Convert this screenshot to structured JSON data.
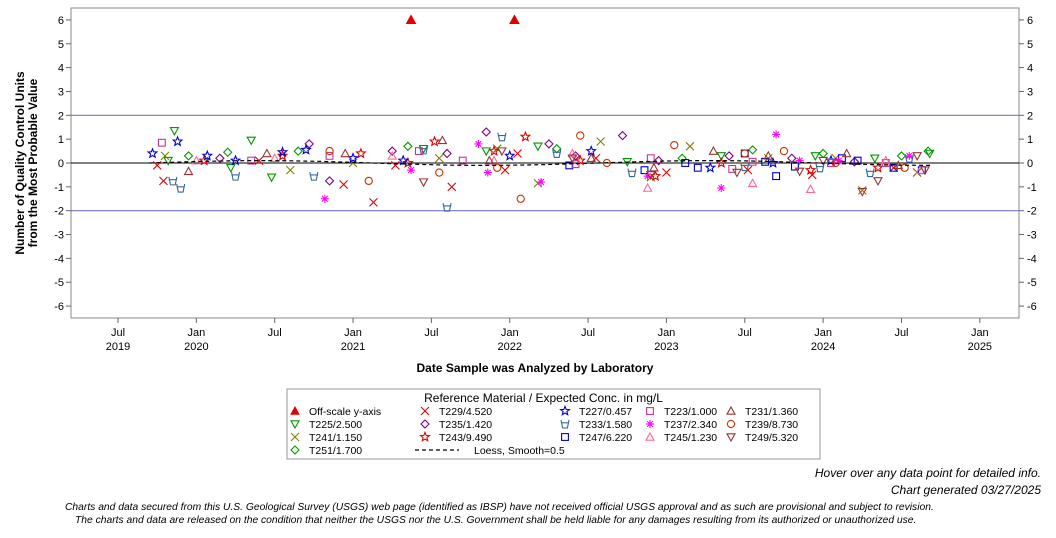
{
  "chart_data": {
    "type": "scatter",
    "y_title_lines": [
      "Number of Quality Control Units",
      "from the Most Probable Value"
    ],
    "xlabel": "Date Sample was Analyzed by Laboratory",
    "ylim": [
      -6.5,
      6.5
    ],
    "y_ticks": [
      6,
      5,
      4,
      3,
      2,
      1,
      0,
      -1,
      -2,
      -3,
      -4,
      -5,
      -6
    ],
    "y_tick_labels": [
      "6",
      "5",
      "4",
      "3",
      "2",
      "1",
      "0",
      "-1",
      "-2",
      "-3",
      "-4",
      "-5",
      "-6"
    ],
    "x_range": [
      2019.2,
      2025.25
    ],
    "x_ticks": [
      {
        "x": 2019.5,
        "line1": "Jul",
        "line2": "2019"
      },
      {
        "x": 2020.0,
        "line1": "Jan",
        "line2": "2020"
      },
      {
        "x": 2020.5,
        "line1": "Jul",
        "line2": ""
      },
      {
        "x": 2021.0,
        "line1": "Jan",
        "line2": "2021"
      },
      {
        "x": 2021.5,
        "line1": "Jul",
        "line2": ""
      },
      {
        "x": 2022.0,
        "line1": "Jan",
        "line2": "2022"
      },
      {
        "x": 2022.5,
        "line1": "Jul",
        "line2": ""
      },
      {
        "x": 2023.0,
        "line1": "Jan",
        "line2": "2023"
      },
      {
        "x": 2023.5,
        "line1": "Jul",
        "line2": ""
      },
      {
        "x": 2024.0,
        "line1": "Jan",
        "line2": "2024"
      },
      {
        "x": 2024.5,
        "line1": "Jul",
        "line2": ""
      },
      {
        "x": 2025.0,
        "line1": "Jan",
        "line2": "2025"
      }
    ],
    "reference_lines": [
      2,
      -2
    ],
    "zero_line": 0,
    "offscale_points": [
      {
        "x": 2021.37,
        "y": 6
      },
      {
        "x": 2022.03,
        "y": 6
      }
    ],
    "legend_title": "Reference Material / Expected Conc. in mg/L",
    "series": [
      {
        "name": "Off-scale y-axis",
        "symbol": "tri-up-filled",
        "color": "#e00000",
        "points": []
      },
      {
        "name": "T229/4.520",
        "symbol": "x",
        "color": "#e00000",
        "points": [
          [
            2019.75,
            -0.1
          ],
          [
            2019.79,
            -0.75
          ],
          [
            2020.4,
            0.1
          ],
          [
            2020.94,
            -0.9
          ],
          [
            2021.13,
            -1.65
          ],
          [
            2021.27,
            -0.1
          ],
          [
            2021.63,
            -1.0
          ],
          [
            2021.97,
            -0.3
          ],
          [
            2022.05,
            0.4
          ],
          [
            2022.55,
            0.2
          ],
          [
            2023.0,
            -0.4
          ],
          [
            2023.52,
            -0.3
          ],
          [
            2023.93,
            -0.5
          ],
          [
            2024.45,
            -0.2
          ],
          [
            2024.6,
            -0.4
          ]
        ]
      },
      {
        "name": "T225/2.500",
        "symbol": "tri-down",
        "color": "#009900",
        "points": [
          [
            2019.82,
            0.1
          ],
          [
            2019.86,
            1.35
          ],
          [
            2020.22,
            -0.2
          ],
          [
            2020.35,
            0.95
          ],
          [
            2020.48,
            -0.6
          ],
          [
            2021.45,
            0.6
          ],
          [
            2021.85,
            0.5
          ],
          [
            2022.18,
            0.7
          ],
          [
            2022.75,
            0.05
          ],
          [
            2023.35,
            0.3
          ],
          [
            2023.95,
            0.3
          ],
          [
            2024.33,
            0.2
          ],
          [
            2024.68,
            0.4
          ]
        ]
      },
      {
        "name": "T241/1.150",
        "symbol": "x",
        "color": "#808000",
        "points": [
          [
            2019.8,
            0.3
          ],
          [
            2020.6,
            -0.3
          ],
          [
            2021.0,
            0.0
          ],
          [
            2021.55,
            0.2
          ],
          [
            2021.92,
            0.6
          ],
          [
            2022.18,
            -0.85
          ],
          [
            2022.58,
            0.9
          ],
          [
            2022.9,
            -0.6
          ],
          [
            2023.15,
            0.7
          ],
          [
            2023.65,
            0.2
          ],
          [
            2024.08,
            0.2
          ],
          [
            2024.25,
            -1.15
          ],
          [
            2024.6,
            -0.4
          ]
        ]
      },
      {
        "name": "T251/1.700",
        "symbol": "diamond",
        "color": "#009900",
        "points": [
          [
            2019.95,
            0.3
          ],
          [
            2020.2,
            0.45
          ],
          [
            2020.65,
            0.5
          ],
          [
            2021.35,
            0.7
          ],
          [
            2022.3,
            0.6
          ],
          [
            2023.1,
            0.2
          ],
          [
            2023.55,
            0.55
          ],
          [
            2024.0,
            0.4
          ],
          [
            2024.5,
            0.3
          ],
          [
            2024.67,
            0.5
          ]
        ]
      },
      {
        "name": "T235/1.420",
        "symbol": "diamond",
        "color": "#800080",
        "points": [
          [
            2020.15,
            0.2
          ],
          [
            2020.72,
            0.8
          ],
          [
            2020.85,
            -0.75
          ],
          [
            2021.25,
            0.5
          ],
          [
            2021.6,
            0.4
          ],
          [
            2021.85,
            1.3
          ],
          [
            2022.25,
            0.8
          ],
          [
            2022.42,
            0.3
          ],
          [
            2022.72,
            1.15
          ],
          [
            2022.95,
            0.1
          ],
          [
            2023.4,
            0.3
          ],
          [
            2023.8,
            0.2
          ],
          [
            2024.2,
            0.05
          ]
        ]
      },
      {
        "name": "T243/9.490",
        "symbol": "star",
        "color": "#e00000",
        "points": [
          [
            2020.05,
            0.1
          ],
          [
            2020.55,
            0.3
          ],
          [
            2021.05,
            0.4
          ],
          [
            2021.35,
            0.0
          ],
          [
            2021.52,
            0.9
          ],
          [
            2021.9,
            0.5
          ],
          [
            2022.1,
            1.1
          ],
          [
            2022.45,
            0.1
          ],
          [
            2022.93,
            -0.55
          ],
          [
            2023.35,
            0.0
          ],
          [
            2023.92,
            -0.3
          ],
          [
            2024.35,
            -0.2
          ]
        ]
      },
      {
        "name": "T227/0.457",
        "symbol": "star",
        "color": "#0000cc",
        "points": [
          [
            2019.72,
            0.4
          ],
          [
            2019.88,
            0.9
          ],
          [
            2020.07,
            0.3
          ],
          [
            2020.25,
            0.1
          ],
          [
            2020.55,
            0.45
          ],
          [
            2020.7,
            0.55
          ],
          [
            2021.0,
            0.2
          ],
          [
            2021.32,
            0.1
          ],
          [
            2022.0,
            0.3
          ],
          [
            2022.52,
            0.5
          ],
          [
            2023.28,
            -0.2
          ],
          [
            2023.68,
            0.0
          ],
          [
            2024.05,
            0.1
          ]
        ]
      },
      {
        "name": "T233/1.580",
        "symbol": "cup",
        "color": "#336699",
        "points": [
          [
            2019.85,
            -0.75
          ],
          [
            2019.9,
            -1.05
          ],
          [
            2020.25,
            -0.55
          ],
          [
            2020.75,
            -0.55
          ],
          [
            2021.45,
            0.55
          ],
          [
            2021.6,
            -1.85
          ],
          [
            2021.95,
            1.1
          ],
          [
            2022.3,
            0.4
          ],
          [
            2022.78,
            -0.4
          ],
          [
            2023.5,
            -0.15
          ],
          [
            2023.98,
            -0.2
          ],
          [
            2024.3,
            -0.4
          ],
          [
            2024.55,
            0.2
          ]
        ]
      },
      {
        "name": "T247/6.220",
        "symbol": "square",
        "color": "#0000cc",
        "points": [
          [
            2022.38,
            -0.1
          ],
          [
            2022.86,
            -0.3
          ],
          [
            2023.12,
            0.0
          ],
          [
            2023.2,
            -0.2
          ],
          [
            2023.5,
            0.4
          ],
          [
            2023.63,
            0.05
          ],
          [
            2023.7,
            -0.55
          ],
          [
            2023.82,
            -0.15
          ],
          [
            2024.12,
            0.2
          ],
          [
            2024.22,
            0.1
          ],
          [
            2024.45,
            -0.2
          ],
          [
            2024.63,
            -0.3
          ]
        ]
      },
      {
        "name": "T223/1.000",
        "symbol": "square",
        "color": "#cc3399",
        "points": [
          [
            2019.78,
            0.85
          ],
          [
            2020.35,
            0.1
          ],
          [
            2020.85,
            0.3
          ],
          [
            2021.42,
            0.5
          ],
          [
            2021.7,
            0.1
          ],
          [
            2022.42,
            -0.05
          ],
          [
            2022.9,
            0.2
          ],
          [
            2023.42,
            -0.25
          ],
          [
            2023.55,
            0.05
          ],
          [
            2024.05,
            0.0
          ],
          [
            2024.4,
            0.0
          ]
        ]
      },
      {
        "name": "T237/2.340",
        "symbol": "asterisk",
        "color": "#ff00ff",
        "points": [
          [
            2020.82,
            -1.5
          ],
          [
            2021.37,
            -0.3
          ],
          [
            2021.8,
            0.8
          ],
          [
            2021.86,
            -0.4
          ],
          [
            2022.2,
            -0.8
          ],
          [
            2022.88,
            -0.55
          ],
          [
            2023.35,
            -1.05
          ],
          [
            2023.7,
            1.2
          ],
          [
            2023.85,
            0.1
          ],
          [
            2024.1,
            0.1
          ],
          [
            2024.55,
            0.3
          ]
        ]
      },
      {
        "name": "T245/1.230",
        "symbol": "tri-up",
        "color": "#ff6699",
        "points": [
          [
            2020.0,
            0.1
          ],
          [
            2020.5,
            0.2
          ],
          [
            2021.25,
            0.3
          ],
          [
            2021.9,
            0.1
          ],
          [
            2022.4,
            0.4
          ],
          [
            2022.88,
            -1.05
          ],
          [
            2023.55,
            -0.85
          ],
          [
            2023.92,
            -1.1
          ],
          [
            2024.4,
            0.1
          ],
          [
            2024.62,
            -0.3
          ]
        ]
      },
      {
        "name": "T231/1.360",
        "symbol": "tri-up",
        "color": "#993333",
        "points": [
          [
            2019.95,
            -0.35
          ],
          [
            2020.45,
            0.4
          ],
          [
            2020.95,
            0.4
          ],
          [
            2021.57,
            0.95
          ],
          [
            2021.87,
            0.1
          ],
          [
            2022.52,
            0.2
          ],
          [
            2022.92,
            -0.2
          ],
          [
            2023.3,
            0.5
          ],
          [
            2023.65,
            0.3
          ],
          [
            2024.15,
            0.4
          ],
          [
            2024.48,
            -0.1
          ]
        ]
      },
      {
        "name": "T239/8.730",
        "symbol": "circle",
        "color": "#cc3300",
        "points": [
          [
            2020.85,
            0.5
          ],
          [
            2021.1,
            -0.75
          ],
          [
            2021.55,
            -0.4
          ],
          [
            2021.92,
            -0.2
          ],
          [
            2022.07,
            -1.5
          ],
          [
            2022.45,
            1.15
          ],
          [
            2022.62,
            0.0
          ],
          [
            2023.05,
            0.75
          ],
          [
            2023.5,
            0.4
          ],
          [
            2023.75,
            0.5
          ],
          [
            2024.08,
            0.0
          ],
          [
            2024.52,
            -0.2
          ]
        ]
      },
      {
        "name": "T249/5.320",
        "symbol": "tri-down",
        "color": "#993333",
        "points": [
          [
            2021.45,
            -0.8
          ],
          [
            2021.95,
            0.5
          ],
          [
            2022.4,
            0.2
          ],
          [
            2022.9,
            -0.5
          ],
          [
            2023.45,
            -0.4
          ],
          [
            2023.85,
            -0.35
          ],
          [
            2024.0,
            0.1
          ],
          [
            2024.25,
            -1.2
          ],
          [
            2024.35,
            -0.75
          ],
          [
            2024.6,
            0.3
          ],
          [
            2024.65,
            -0.3
          ]
        ]
      },
      {
        "name": "Loess, Smooth=0.5",
        "symbol": "dash-line",
        "color": "#000000",
        "points": []
      }
    ]
  },
  "notes": {
    "hover": "Hover over any data point for detailed info.",
    "generated": "Chart generated 03/27/2025",
    "disclaimer_1": "Charts and data secured from this U.S. Geological Survey (USGS) web page (identified as IBSP) have not received official USGS approval and as such are provisional and subject to revision.",
    "disclaimer_2": "The charts and data are released on the condition that neither the USGS nor the U.S. Government shall be held liable for any damages resulting from its authorized or unauthorized use."
  }
}
